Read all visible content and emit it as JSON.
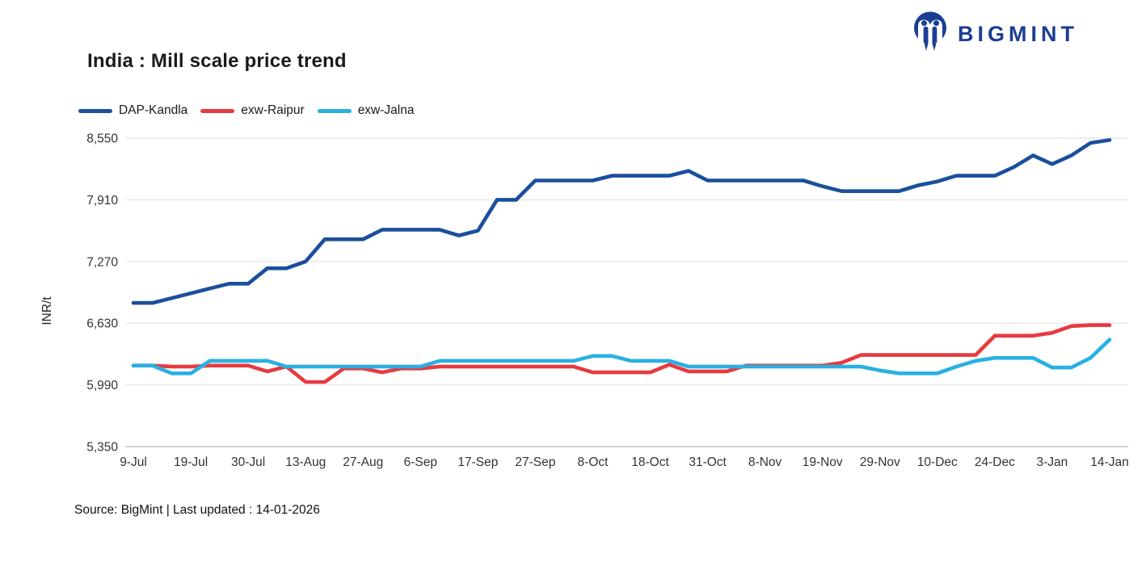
{
  "title": "India : Mill scale price trend",
  "logo": {
    "text": "BIGMINT",
    "color": "#1b3e94"
  },
  "source_note": "Source: BigMint | Last updated : 14-01-2026",
  "chart_data": {
    "type": "line",
    "title": "India : Mill scale price trend",
    "xlabel": "",
    "ylabel": "INR/t",
    "ylim": [
      5350,
      8550
    ],
    "grid": true,
    "legend_position": "top-left",
    "y_ticks": [
      "8,550",
      "7,910",
      "7,270",
      "6,630",
      "5,990",
      "5,350"
    ],
    "y_tick_values": [
      8550,
      7910,
      7270,
      6630,
      5990,
      5350
    ],
    "x_tick_labels": [
      "9-Jul",
      "19-Jul",
      "30-Jul",
      "13-Aug",
      "27-Aug",
      "6-Sep",
      "17-Sep",
      "27-Sep",
      "8-Oct",
      "18-Oct",
      "31-Oct",
      "8-Nov",
      "19-Nov",
      "29-Nov",
      "10-Dec",
      "24-Dec",
      "3-Jan",
      "14-Jan"
    ],
    "points_per_tick": 3,
    "n_points": 52,
    "series": [
      {
        "name": "DAP-Kandla",
        "color": "#1a4f9c",
        "values": [
          6840,
          6840,
          6890,
          6940,
          6990,
          7040,
          7040,
          7200,
          7200,
          7270,
          7500,
          7500,
          7500,
          7600,
          7600,
          7600,
          7600,
          7540,
          7590,
          7910,
          7910,
          8110,
          8110,
          8110,
          8110,
          8160,
          8160,
          8160,
          8160,
          8210,
          8110,
          8110,
          8110,
          8110,
          8110,
          8110,
          8050,
          8000,
          8000,
          8000,
          8000,
          8060,
          8100,
          8160,
          8160,
          8160,
          8250,
          8370,
          8280,
          8370,
          8500,
          8530
        ]
      },
      {
        "name": "exw-Raipur",
        "color": "#e63b40",
        "values": [
          6190,
          6190,
          6180,
          6180,
          6190,
          6190,
          6190,
          6130,
          6180,
          6020,
          6020,
          6160,
          6160,
          6120,
          6160,
          6160,
          6180,
          6180,
          6180,
          6180,
          6180,
          6180,
          6180,
          6180,
          6120,
          6120,
          6120,
          6120,
          6200,
          6130,
          6130,
          6130,
          6190,
          6190,
          6190,
          6190,
          6190,
          6220,
          6300,
          6300,
          6300,
          6300,
          6300,
          6300,
          6300,
          6500,
          6500,
          6500,
          6530,
          6600,
          6610,
          6610
        ]
      },
      {
        "name": "exw-Jalna",
        "color": "#29b0e2",
        "values": [
          6190,
          6190,
          6110,
          6110,
          6240,
          6240,
          6240,
          6240,
          6180,
          6180,
          6180,
          6180,
          6180,
          6180,
          6180,
          6180,
          6240,
          6240,
          6240,
          6240,
          6240,
          6240,
          6240,
          6240,
          6290,
          6290,
          6240,
          6240,
          6240,
          6180,
          6180,
          6180,
          6180,
          6180,
          6180,
          6180,
          6180,
          6180,
          6180,
          6140,
          6110,
          6110,
          6110,
          6180,
          6240,
          6270,
          6270,
          6270,
          6170,
          6170,
          6270,
          6460
        ]
      }
    ]
  }
}
